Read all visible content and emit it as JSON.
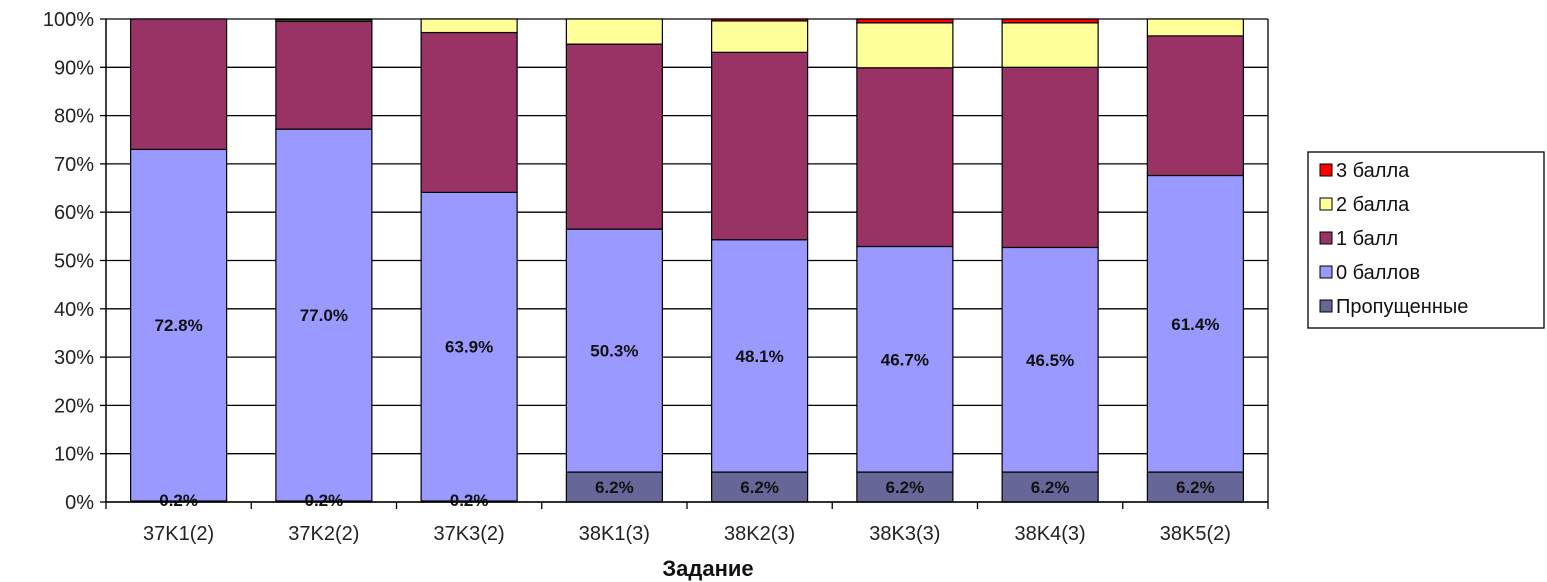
{
  "chart_data": {
    "type": "bar",
    "stacked": true,
    "percent": true,
    "title": "",
    "xlabel": "Задание",
    "ylabel": "",
    "ylim": [
      0,
      100
    ],
    "yticks": [
      "0%",
      "10%",
      "20%",
      "30%",
      "40%",
      "50%",
      "60%",
      "70%",
      "80%",
      "90%",
      "100%"
    ],
    "grid": true,
    "legend_position": "right",
    "categories": [
      "37K1(2)",
      "37K2(2)",
      "37K3(2)",
      "38K1(3)",
      "38K2(3)",
      "38K3(3)",
      "38K4(3)",
      "38K5(2)"
    ],
    "series": [
      {
        "name": "Пропущенные",
        "color": "#666699",
        "values": [
          0.2,
          0.2,
          0.2,
          6.2,
          6.2,
          6.2,
          6.2,
          6.2
        ]
      },
      {
        "name": "0 баллов",
        "color": "#9999FF",
        "values": [
          72.8,
          77.0,
          63.9,
          50.3,
          48.1,
          46.7,
          46.5,
          61.4
        ]
      },
      {
        "name": "1 балл",
        "color": "#993366",
        "values": [
          27.0,
          22.3,
          33.1,
          38.3,
          38.8,
          37.0,
          37.3,
          28.9
        ]
      },
      {
        "name": "2 балла",
        "color": "#FFFF99",
        "values": [
          0.0,
          0.3,
          2.8,
          5.2,
          6.5,
          9.3,
          9.2,
          3.5
        ]
      },
      {
        "name": "3 балла",
        "color": "#FF0000",
        "values": [
          0.0,
          0.2,
          0.0,
          0.0,
          0.4,
          0.8,
          0.8,
          0.0
        ]
      }
    ],
    "data_labels": {
      "Пропущенные": [
        "0.2%",
        "0.2%",
        "0.2%",
        "6.2%",
        "6.2%",
        "6.2%",
        "6.2%",
        "6.2%"
      ],
      "0 баллов": [
        "72.8%",
        "77.0%",
        "63.9%",
        "50.3%",
        "48.1%",
        "46.7%",
        "46.5%",
        "61.4%"
      ]
    },
    "legend_order": [
      "3 балла",
      "2 балла",
      "1 балл",
      "0 баллов",
      "Пропущенные"
    ]
  }
}
